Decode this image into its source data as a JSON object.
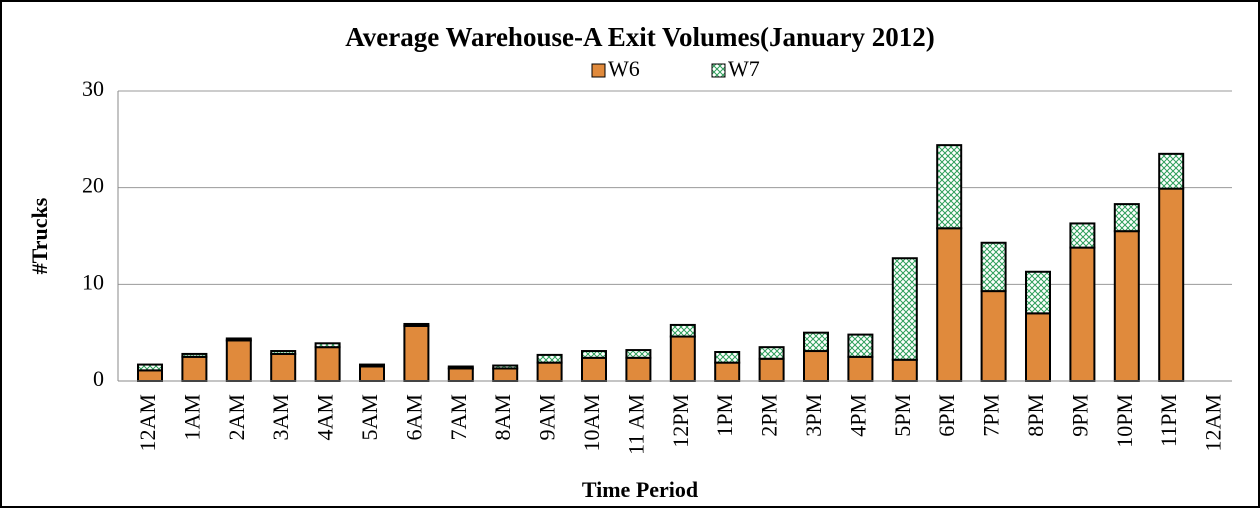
{
  "chart_data": {
    "type": "stacked_bar",
    "title": "Average Warehouse-A Exit Volumes(January 2012)",
    "x_label": "Time Period",
    "y_label": "#Trucks",
    "categories": [
      "12AM",
      "1AM",
      "2AM",
      "3AM",
      "4AM",
      "5AM",
      "6AM",
      "7AM",
      "8AM",
      "9AM",
      "10AM",
      "11 AM",
      "12PM",
      "1PM",
      "2PM",
      "3PM",
      "4PM",
      "5PM",
      "6PM",
      "7PM",
      "8PM",
      "9PM",
      "10PM",
      "11PM",
      "12AM"
    ],
    "series": [
      {
        "name": "W6",
        "color": "#e08a3c",
        "values": [
          1.1,
          2.5,
          4.2,
          2.8,
          3.5,
          1.5,
          5.7,
          1.3,
          1.3,
          1.9,
          2.4,
          2.4,
          4.6,
          1.9,
          2.3,
          3.1,
          2.5,
          2.2,
          15.8,
          9.3,
          7.0,
          13.8,
          15.5,
          19.9,
          null
        ]
      },
      {
        "name": "W7",
        "color": "#2e9e5a",
        "values": [
          0.6,
          0.3,
          0.2,
          0.3,
          0.4,
          0.2,
          0.2,
          0.2,
          0.3,
          0.8,
          0.7,
          0.8,
          1.2,
          1.1,
          1.2,
          1.9,
          2.3,
          10.5,
          8.6,
          5.0,
          4.3,
          2.5,
          2.8,
          3.6,
          null
        ]
      }
    ],
    "ylim": [
      0,
      30
    ],
    "yticks": [
      0,
      10,
      20,
      30
    ],
    "grid": true
  }
}
